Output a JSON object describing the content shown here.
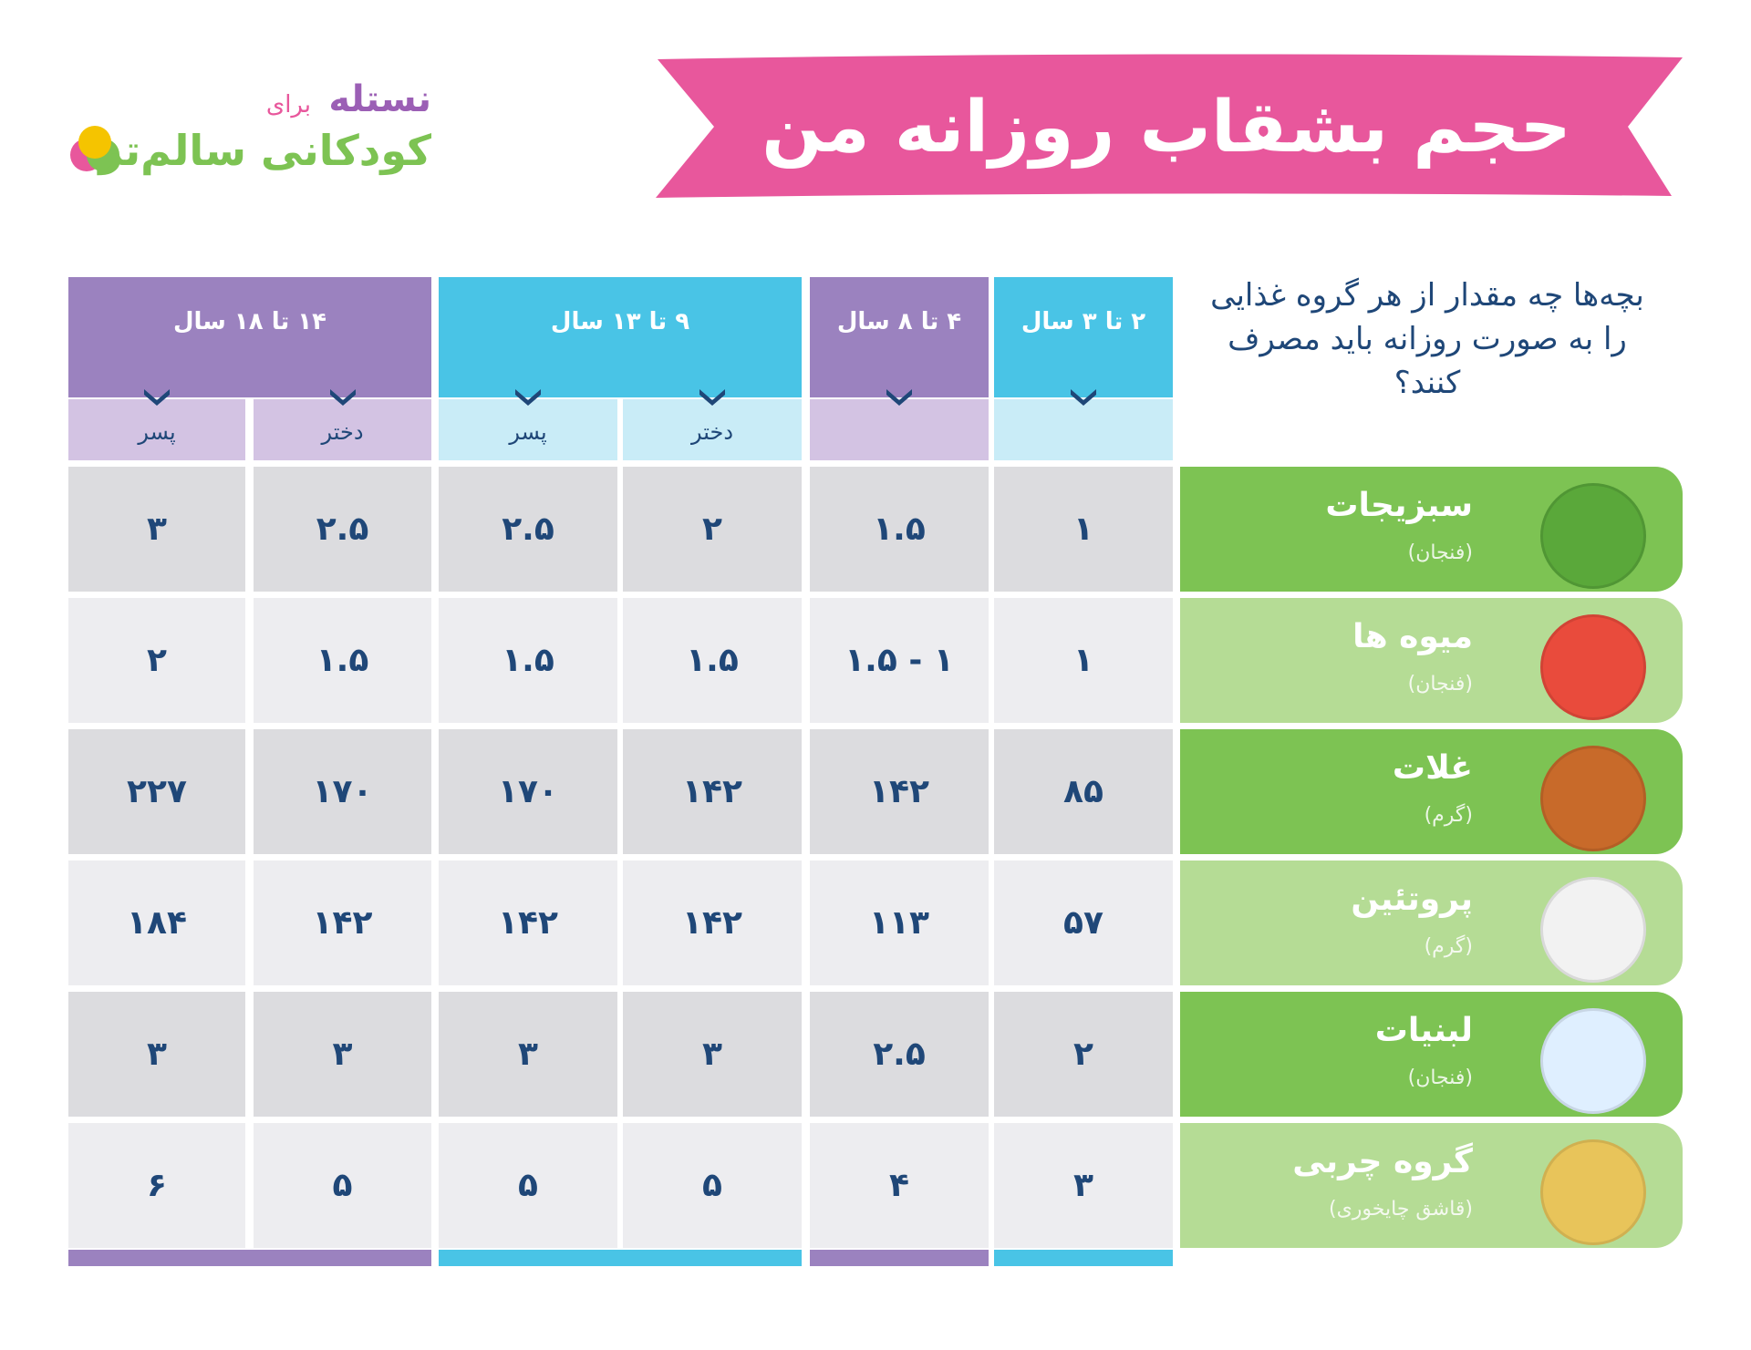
{
  "logo": {
    "brand": "نستله",
    "for": "برای",
    "tagline": "کودکانی سالم‌تر"
  },
  "header": {
    "title": "حجم بشقاب روزانه من"
  },
  "question": "بچه‌ها چه مقدار از هر گروه غذایی را به صورت روزانه باید مصرف کنند؟",
  "table": {
    "age_groups": [
      {
        "label": "۲ تا ۳ سال",
        "genders": []
      },
      {
        "label": "۴ تا ۸ سال",
        "genders": []
      },
      {
        "label": "۹ تا ۱۳ سال",
        "genders": [
          "دختر",
          "پسر"
        ]
      },
      {
        "label": "۱۴ تا ۱۸ سال",
        "genders": [
          "دختر",
          "پسر"
        ]
      }
    ],
    "rows": [
      {
        "name": "سبزیجات",
        "unit": "(فنجان)",
        "values": [
          "۱",
          "۱.۵",
          "۲",
          "۲.۵",
          "۲.۵",
          "۳"
        ]
      },
      {
        "name": "میوه ها",
        "unit": "(فنجان)",
        "values": [
          "۱",
          "۱ - ۱.۵",
          "۱.۵",
          "۱.۵",
          "۱.۵",
          "۲"
        ]
      },
      {
        "name": "غلات",
        "unit": "(گرم)",
        "values": [
          "۸۵",
          "۱۴۲",
          "۱۴۲",
          "۱۷۰",
          "۱۷۰",
          "۲۲۷"
        ]
      },
      {
        "name": "پروتئین",
        "unit": "(گرم)",
        "values": [
          "۵۷",
          "۱۱۳",
          "۱۴۲",
          "۱۴۲",
          "۱۴۲",
          "۱۸۴"
        ]
      },
      {
        "name": "لبنیات",
        "unit": "(فنجان)",
        "values": [
          "۲",
          "۲.۵",
          "۳",
          "۳",
          "۳",
          "۳"
        ]
      },
      {
        "name": "گروه چربی",
        "unit": "(قاشق چایخوری)",
        "values": [
          "۳",
          "۴",
          "۵",
          "۵",
          "۵",
          "۶"
        ]
      }
    ]
  }
}
